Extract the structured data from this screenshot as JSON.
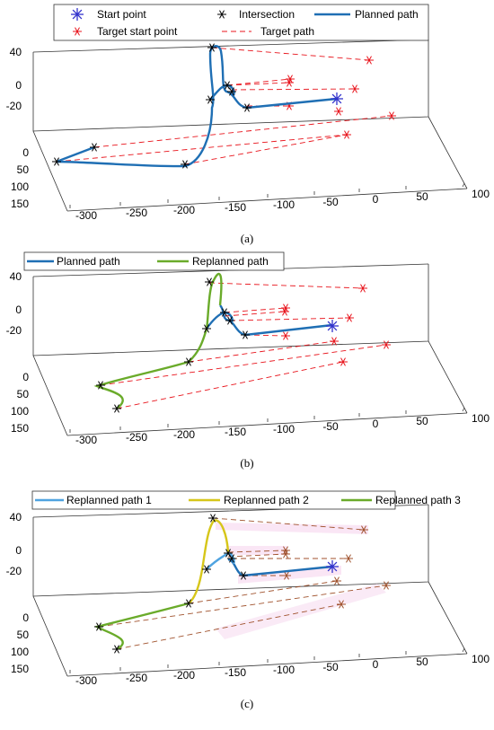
{
  "chart_data": [
    {
      "type": "line",
      "caption": "(a)",
      "legend": [
        "Start point",
        "Intersection",
        "Planned path",
        "Target start point",
        "Target path"
      ],
      "x_ticks": [
        "-300",
        "-250",
        "-200",
        "-150",
        "-100",
        "-50",
        "0",
        "50",
        "100"
      ],
      "y_ticks": [
        "0",
        "50",
        "100",
        "150"
      ],
      "z_ticks": [
        "40",
        "0",
        "-20"
      ],
      "colors": {
        "start": "#3333cc",
        "intersection": "#000000",
        "planned": "#1f6fb4",
        "target": "#e8141c"
      }
    },
    {
      "type": "line",
      "caption": "(b)",
      "legend": [
        "Planned path",
        "Replanned path"
      ],
      "x_ticks": [
        "-300",
        "-250",
        "-200",
        "-150",
        "-100",
        "-50",
        "0",
        "50",
        "100"
      ],
      "y_ticks": [
        "0",
        "50",
        "100",
        "150"
      ],
      "z_ticks": [
        "40",
        "0",
        "-20"
      ],
      "colors": {
        "planned": "#1f6fb4",
        "replanned": "#6aab2a",
        "target": "#e8141c"
      }
    },
    {
      "type": "line",
      "caption": "(c)",
      "legend": [
        "Replanned path 1",
        "Replanned path 2",
        "Replanned path 3"
      ],
      "x_ticks": [
        "-300",
        "-250",
        "-200",
        "-150",
        "-100",
        "-50",
        "0",
        "50",
        "100"
      ],
      "y_ticks": [
        "0",
        "50",
        "100",
        "150"
      ],
      "z_ticks": [
        "40",
        "0",
        "-20"
      ],
      "colors": {
        "path1": "#4fa3e0",
        "path2": "#d6c619",
        "path3": "#6aab2a",
        "target": "#a0522d"
      }
    }
  ]
}
